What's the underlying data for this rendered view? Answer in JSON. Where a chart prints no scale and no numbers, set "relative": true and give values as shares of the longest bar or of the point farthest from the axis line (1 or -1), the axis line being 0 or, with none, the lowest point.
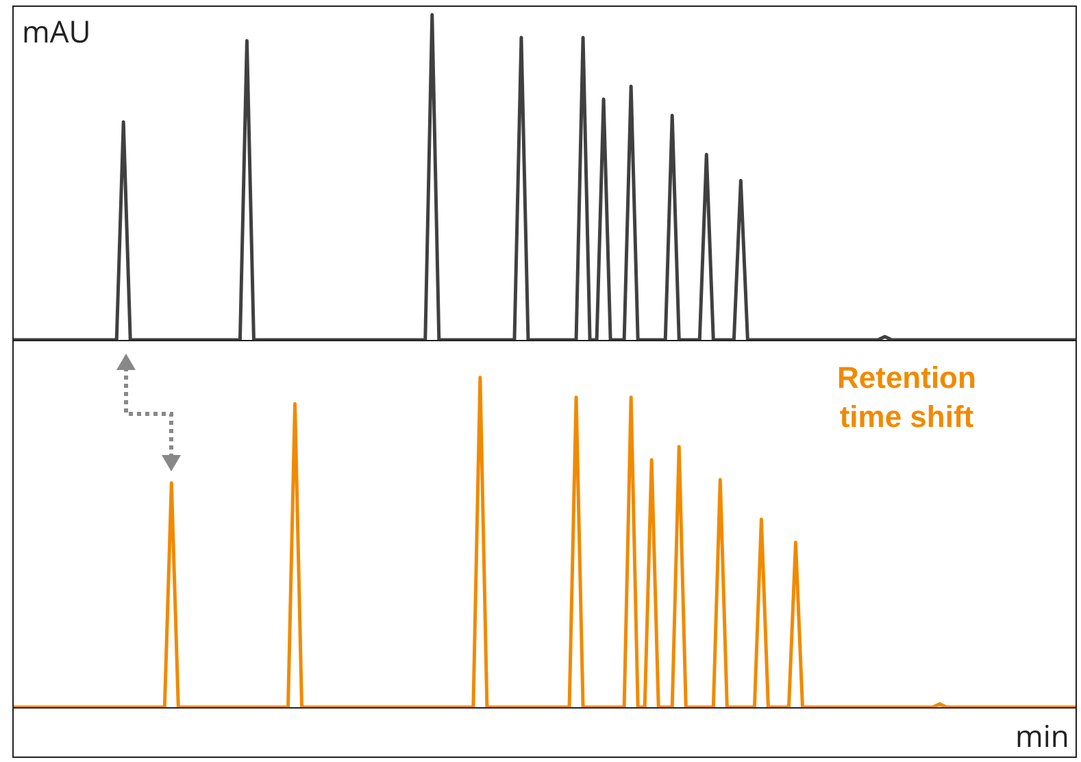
{
  "chart_data": [
    {
      "type": "line",
      "relative": true,
      "ylabel": "mAU",
      "categories": [
        null,
        null,
        null,
        null,
        null,
        null,
        null,
        null,
        null,
        null,
        null,
        null,
        null,
        null,
        null,
        null,
        null,
        null,
        null,
        null,
        null,
        null,
        null,
        null,
        null,
        null,
        null,
        null,
        null,
        null,
        null,
        null,
        null,
        null,
        null,
        null,
        null,
        null,
        null,
        null,
        null,
        null,
        null,
        null,
        null,
        null,
        null,
        null,
        null,
        null,
        null,
        null,
        null,
        null,
        null,
        null,
        null,
        null,
        null,
        null,
        null,
        null,
        null,
        null,
        null,
        null,
        null,
        null,
        null,
        null,
        null,
        null,
        null,
        null,
        null,
        null,
        null,
        null,
        null,
        null,
        null,
        null,
        null,
        null,
        null,
        null,
        null,
        null,
        null,
        null,
        null,
        null,
        null,
        null,
        null,
        null,
        null,
        null,
        null,
        null,
        null,
        null,
        null,
        null,
        null,
        null,
        null,
        null,
        null,
        null,
        null,
        null,
        null,
        null,
        null,
        null,
        null,
        null,
        null,
        null,
        null,
        null,
        null,
        null,
        null,
        null,
        null,
        null,
        null,
        null,
        null,
        null,
        null,
        null,
        null,
        null,
        null,
        null,
        null,
        null,
        null,
        null,
        null,
        null,
        null,
        null,
        null,
        null,
        null,
        null,
        null,
        null,
        null,
        null,
        null,
        null
      ],
      "series": [
        {
          "color": "#404040",
          "values": [
            0,
            0,
            0,
            0,
            0,
            0,
            0,
            0,
            0,
            0,
            0,
            0,
            0,
            0,
            0,
            0,
            0.67,
            0,
            0,
            0,
            0,
            0,
            0,
            0,
            0,
            0,
            0,
            0,
            0,
            0,
            0,
            0,
            0,
            0,
            0.92,
            0,
            0,
            0,
            0,
            0,
            0,
            0,
            0,
            0,
            0,
            0,
            0,
            0,
            0,
            0,
            0,
            0,
            0,
            0,
            0,
            0,
            0,
            0,
            0,
            0,
            0,
            1,
            0,
            0,
            0,
            0,
            0,
            0,
            0,
            0,
            0,
            0,
            0,
            0,
            0.93,
            0,
            0,
            0,
            0,
            0,
            0,
            0,
            0,
            0.93,
            0,
            0,
            0.74,
            0,
            0,
            0,
            0.78,
            0,
            0,
            0,
            0,
            0,
            0.69,
            0,
            0,
            0,
            0,
            0.57,
            0,
            0,
            0,
            0,
            0.49,
            0,
            0,
            0,
            0,
            0,
            0,
            0,
            0,
            0,
            0,
            0,
            0,
            0,
            0,
            0,
            0,
            0,
            0,
            0,
            0,
            0.01,
            0,
            0,
            0,
            0,
            0,
            0,
            0,
            0,
            0,
            0,
            0,
            0,
            0,
            0,
            0,
            0,
            0,
            0,
            0,
            0,
            0,
            0,
            0,
            0,
            0,
            0,
            0,
            0
          ]
        }
      ]
    },
    {
      "type": "line",
      "relative": true,
      "xlabel": "min",
      "annotations": [
        "Retention time shift"
      ],
      "categories": [
        null,
        null,
        null,
        null,
        null,
        null,
        null,
        null,
        null,
        null,
        null,
        null,
        null,
        null,
        null,
        null,
        null,
        null,
        null,
        null,
        null,
        null,
        null,
        null,
        null,
        null,
        null,
        null,
        null,
        null,
        null,
        null,
        null,
        null,
        null,
        null,
        null,
        null,
        null,
        null,
        null,
        null,
        null,
        null,
        null,
        null,
        null,
        null,
        null,
        null,
        null,
        null,
        null,
        null,
        null,
        null,
        null,
        null,
        null,
        null,
        null,
        null,
        null,
        null,
        null,
        null,
        null,
        null,
        null,
        null,
        null,
        null,
        null,
        null,
        null,
        null,
        null,
        null,
        null,
        null,
        null,
        null,
        null,
        null,
        null,
        null,
        null,
        null,
        null,
        null,
        null,
        null,
        null,
        null,
        null,
        null,
        null,
        null,
        null,
        null,
        null,
        null,
        null,
        null,
        null,
        null,
        null,
        null,
        null,
        null,
        null,
        null,
        null,
        null,
        null,
        null,
        null,
        null,
        null,
        null,
        null,
        null,
        null,
        null,
        null,
        null,
        null,
        null,
        null,
        null,
        null,
        null,
        null,
        null,
        null,
        null,
        null,
        null,
        null,
        null,
        null,
        null,
        null,
        null,
        null,
        null,
        null,
        null,
        null,
        null,
        null,
        null,
        null,
        null,
        null,
        null
      ],
      "series": [
        {
          "color": "#f08a00",
          "values": [
            0,
            0,
            0,
            0,
            0,
            0,
            0,
            0,
            0,
            0,
            0,
            0,
            0,
            0,
            0,
            0,
            0,
            0,
            0,
            0,
            0,
            0,
            0,
            0.68,
            0,
            0,
            0,
            0,
            0,
            0,
            0,
            0,
            0,
            0,
            0,
            0,
            0,
            0,
            0,
            0,
            0,
            0.92,
            0,
            0,
            0,
            0,
            0,
            0,
            0,
            0,
            0,
            0,
            0,
            0,
            0,
            0,
            0,
            0,
            0,
            0,
            0,
            0,
            0,
            0,
            0,
            0,
            0,
            0,
            1,
            0,
            0,
            0,
            0,
            0,
            0,
            0,
            0,
            0,
            0,
            0,
            0,
            0,
            0.94,
            0,
            0,
            0,
            0,
            0,
            0,
            0,
            0.94,
            0,
            0,
            0.75,
            0,
            0,
            0,
            0.79,
            0,
            0,
            0,
            0,
            0,
            0.69,
            0,
            0,
            0,
            0,
            0,
            0.57,
            0,
            0,
            0,
            0,
            0.5,
            0,
            0,
            0,
            0,
            0,
            0,
            0,
            0,
            0,
            0,
            0,
            0,
            0,
            0,
            0,
            0,
            0,
            0,
            0,
            0,
            0.01,
            0,
            0,
            0,
            0,
            0,
            0,
            0,
            0,
            0,
            0,
            0,
            0,
            0,
            0,
            0,
            0,
            0,
            0,
            0,
            0
          ]
        }
      ]
    }
  ]
}
